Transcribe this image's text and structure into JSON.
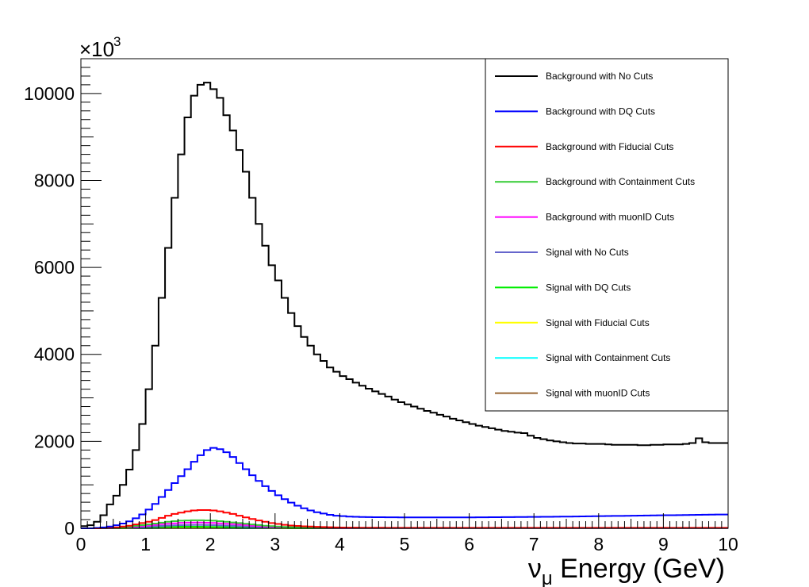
{
  "chart_data": {
    "type": "line",
    "style": "step histogram",
    "xlabel_prefix": "ν",
    "xlabel_sub": "μ",
    "xlabel_suffix": " Energy (GeV)",
    "ylabel": "",
    "y_multiplier_base": "×10",
    "y_multiplier_exp": "3",
    "xlim": [
      0,
      10
    ],
    "ylim": [
      0,
      10800
    ],
    "xticks": [
      "0",
      "1",
      "2",
      "3",
      "4",
      "5",
      "6",
      "7",
      "8",
      "9",
      "10"
    ],
    "yticks": [
      "0",
      "2000",
      "4000",
      "6000",
      "8000",
      "10000"
    ],
    "grid": false,
    "legend_placement": "top-right",
    "bin_width": 0.1,
    "x": [
      0.05,
      0.15,
      0.25,
      0.35,
      0.45,
      0.55,
      0.65,
      0.75,
      0.85,
      0.95,
      1.05,
      1.15,
      1.25,
      1.35,
      1.45,
      1.55,
      1.65,
      1.75,
      1.85,
      1.95,
      2.05,
      2.15,
      2.25,
      2.35,
      2.45,
      2.55,
      2.65,
      2.75,
      2.85,
      2.95,
      3.05,
      3.15,
      3.25,
      3.35,
      3.45,
      3.55,
      3.65,
      3.75,
      3.85,
      3.95,
      4.05,
      4.15,
      4.25,
      4.35,
      4.45,
      4.55,
      4.65,
      4.75,
      4.85,
      4.95,
      5.05,
      5.15,
      5.25,
      5.35,
      5.45,
      5.55,
      5.65,
      5.75,
      5.85,
      5.95,
      6.05,
      6.15,
      6.25,
      6.35,
      6.45,
      6.55,
      6.65,
      6.75,
      6.85,
      6.95,
      7.05,
      7.15,
      7.25,
      7.35,
      7.45,
      7.55,
      7.65,
      7.75,
      7.85,
      7.95,
      8.05,
      8.15,
      8.25,
      8.35,
      8.45,
      8.55,
      8.65,
      8.75,
      8.85,
      8.95,
      9.05,
      9.15,
      9.25,
      9.35,
      9.45,
      9.55,
      9.65,
      9.75,
      9.85,
      9.95
    ],
    "series": [
      {
        "name": "Background with No Cuts",
        "color": "#000000",
        "values": [
          50,
          70,
          150,
          300,
          550,
          750,
          1000,
          1350,
          1800,
          2400,
          3200,
          4200,
          5300,
          6450,
          7600,
          8600,
          9450,
          9950,
          10200,
          10250,
          10100,
          9900,
          9500,
          9150,
          8700,
          8200,
          7600,
          7000,
          6500,
          6050,
          5700,
          5300,
          4950,
          4650,
          4400,
          4200,
          4000,
          3850,
          3700,
          3600,
          3500,
          3430,
          3350,
          3280,
          3210,
          3150,
          3090,
          3030,
          2960,
          2900,
          2850,
          2800,
          2750,
          2700,
          2660,
          2610,
          2570,
          2520,
          2480,
          2440,
          2400,
          2360,
          2330,
          2300,
          2270,
          2240,
          2220,
          2200,
          2190,
          2130,
          2080,
          2050,
          2020,
          2000,
          1980,
          1960,
          1950,
          1950,
          1940,
          1940,
          1940,
          1930,
          1920,
          1920,
          1920,
          1920,
          1910,
          1910,
          1920,
          1920,
          1930,
          1930,
          1930,
          1940,
          1960,
          2070,
          1980,
          1960,
          1960,
          1960
        ]
      },
      {
        "name": "Background with DQ Cuts",
        "color": "#0000ff",
        "values": [
          0,
          0,
          10,
          20,
          40,
          70,
          110,
          160,
          230,
          320,
          430,
          560,
          720,
          880,
          1040,
          1200,
          1360,
          1530,
          1680,
          1800,
          1850,
          1820,
          1750,
          1640,
          1500,
          1360,
          1220,
          1090,
          970,
          860,
          760,
          670,
          590,
          520,
          460,
          410,
          370,
          340,
          310,
          290,
          280,
          270,
          265,
          260,
          258,
          256,
          255,
          254,
          253,
          252,
          252,
          251,
          250,
          250,
          250,
          250,
          250,
          250,
          250,
          250,
          252,
          253,
          254,
          255,
          256,
          257,
          258,
          259,
          260,
          262,
          263,
          264,
          265,
          266,
          268,
          270,
          272,
          274,
          276,
          278,
          280,
          282,
          284,
          286,
          288,
          290,
          292,
          294,
          296,
          298,
          300,
          302,
          304,
          306,
          308,
          310,
          312,
          314,
          316,
          318
        ]
      },
      {
        "name": "Background with Fiducial Cuts",
        "color": "#ff0000",
        "values": [
          0,
          0,
          0,
          5,
          10,
          20,
          40,
          60,
          90,
          120,
          150,
          190,
          240,
          290,
          330,
          360,
          390,
          410,
          420,
          420,
          410,
          390,
          360,
          330,
          290,
          250,
          215,
          180,
          150,
          120,
          100,
          80,
          65,
          55,
          45,
          40,
          35,
          30,
          25,
          20,
          18,
          16,
          15,
          14,
          14,
          13,
          13,
          12,
          12,
          12,
          12,
          12,
          12,
          12,
          12,
          12,
          12,
          12,
          12,
          12,
          12,
          12,
          12,
          12,
          12,
          12,
          12,
          12,
          12,
          12,
          12,
          12,
          12,
          12,
          12,
          12,
          12,
          12,
          12,
          12,
          12,
          12,
          12,
          12,
          12,
          12,
          12,
          12,
          12,
          12,
          12,
          12,
          12,
          12,
          12,
          12,
          12,
          12,
          12,
          12
        ]
      },
      {
        "name": "Background with Containment Cuts",
        "color": "#33cc33",
        "values": [
          0,
          0,
          0,
          3,
          6,
          12,
          24,
          36,
          54,
          72,
          90,
          110,
          130,
          150,
          165,
          175,
          180,
          185,
          185,
          180,
          175,
          165,
          150,
          135,
          120,
          105,
          90,
          75,
          60,
          50,
          40,
          32,
          26,
          22,
          18,
          16,
          14,
          12,
          10,
          9,
          8,
          8,
          7,
          7,
          7,
          6,
          6,
          6,
          6,
          6,
          6,
          6,
          6,
          6,
          6,
          6,
          6,
          6,
          6,
          6,
          6,
          6,
          6,
          6,
          6,
          6,
          6,
          6,
          6,
          6,
          6,
          6,
          6,
          6,
          6,
          6,
          6,
          6,
          6,
          6,
          6,
          6,
          6,
          6,
          6,
          6,
          6,
          6,
          6,
          6,
          6,
          6,
          6,
          6,
          6,
          6,
          6,
          6,
          6,
          6
        ]
      },
      {
        "name": "Background with muonID Cuts",
        "color": "#ff00ff",
        "values": [
          0,
          0,
          0,
          2,
          4,
          8,
          16,
          24,
          36,
          50,
          65,
          80,
          95,
          105,
          115,
          125,
          130,
          132,
          132,
          128,
          122,
          115,
          105,
          95,
          85,
          75,
          62,
          52,
          42,
          35,
          28,
          22,
          18,
          15,
          12,
          10,
          9,
          8,
          7,
          6,
          5,
          5,
          5,
          5,
          5,
          5,
          5,
          5,
          5,
          5,
          5,
          5,
          5,
          5,
          5,
          5,
          5,
          5,
          5,
          5,
          5,
          5,
          5,
          5,
          5,
          5,
          5,
          5,
          5,
          5,
          5,
          5,
          5,
          5,
          5,
          5,
          5,
          5,
          5,
          5,
          5,
          5,
          5,
          5,
          5,
          5,
          5,
          5,
          5,
          5,
          5,
          5,
          5,
          5,
          5,
          5,
          5,
          5,
          5,
          5
        ]
      },
      {
        "name": "Signal with No Cuts",
        "color": "#6666cc",
        "values": [
          0,
          0,
          0,
          1,
          3,
          6,
          10,
          15,
          22,
          30,
          38,
          46,
          54,
          62,
          68,
          72,
          76,
          78,
          78,
          76,
          72,
          68,
          62,
          56,
          48,
          42,
          36,
          30,
          25,
          20,
          16,
          13,
          10,
          8,
          7,
          6,
          5,
          5,
          4,
          4,
          4,
          4,
          4,
          4,
          4,
          4,
          4,
          4,
          4,
          4,
          4,
          4,
          4,
          4,
          4,
          4,
          4,
          4,
          4,
          4,
          4,
          4,
          4,
          4,
          4,
          4,
          4,
          4,
          4,
          4,
          4,
          4,
          4,
          4,
          4,
          4,
          4,
          4,
          4,
          4,
          4,
          4,
          4,
          4,
          4,
          4,
          4,
          4,
          4,
          4,
          4,
          4,
          4,
          4,
          4,
          4,
          4,
          4,
          4,
          4
        ]
      },
      {
        "name": "Signal with DQ Cuts",
        "color": "#00ee00",
        "values": [
          0,
          0,
          0,
          1,
          2,
          4,
          7,
          10,
          14,
          18,
          22,
          26,
          30,
          33,
          35,
          36,
          37,
          37,
          36,
          35,
          33,
          31,
          28,
          25,
          22,
          19,
          16,
          13,
          11,
          9,
          7,
          6,
          5,
          4,
          3,
          3,
          2,
          2,
          2,
          2,
          2,
          2,
          2,
          2,
          2,
          2,
          2,
          2,
          2,
          2,
          2,
          2,
          2,
          2,
          2,
          2,
          2,
          2,
          2,
          2,
          2,
          2,
          2,
          2,
          2,
          2,
          2,
          2,
          2,
          2,
          2,
          2,
          2,
          2,
          2,
          2,
          2,
          2,
          2,
          2,
          2,
          2,
          2,
          2,
          2,
          2,
          2,
          2,
          2,
          2,
          2,
          2,
          2,
          2,
          2,
          2,
          2,
          2,
          2,
          2
        ]
      },
      {
        "name": "Signal with Fiducial Cuts",
        "color": "#ffff00",
        "values": [
          0,
          0,
          0,
          0,
          1,
          2,
          3,
          4,
          6,
          8,
          10,
          12,
          13,
          14,
          15,
          16,
          16,
          16,
          15,
          15,
          14,
          13,
          12,
          11,
          10,
          9,
          8,
          7,
          6,
          5,
          4,
          3,
          3,
          2,
          2,
          2,
          1,
          1,
          1,
          1,
          1,
          1,
          1,
          1,
          1,
          1,
          1,
          1,
          1,
          1,
          1,
          1,
          1,
          1,
          1,
          1,
          1,
          1,
          1,
          1,
          1,
          1,
          1,
          1,
          1,
          1,
          1,
          1,
          1,
          1,
          1,
          1,
          1,
          1,
          1,
          1,
          1,
          1,
          1,
          1,
          1,
          1,
          1,
          1,
          1,
          1,
          1,
          1,
          1,
          1,
          1,
          1,
          1,
          1,
          1,
          1,
          1,
          1,
          1,
          1
        ]
      },
      {
        "name": "Signal with Containment Cuts",
        "color": "#00ffff",
        "values": [
          0,
          0,
          0,
          0,
          1,
          1,
          2,
          3,
          4,
          5,
          6,
          7,
          8,
          9,
          9,
          10,
          10,
          10,
          10,
          9,
          9,
          8,
          8,
          7,
          6,
          5,
          5,
          4,
          4,
          3,
          3,
          2,
          2,
          2,
          1,
          1,
          1,
          1,
          1,
          1,
          1,
          1,
          1,
          1,
          1,
          1,
          1,
          1,
          1,
          1,
          1,
          1,
          1,
          1,
          1,
          1,
          1,
          1,
          1,
          1,
          1,
          1,
          1,
          1,
          1,
          1,
          1,
          1,
          1,
          1,
          1,
          1,
          1,
          1,
          1,
          1,
          1,
          1,
          1,
          1,
          1,
          1,
          1,
          1,
          1,
          1,
          1,
          1,
          1,
          1,
          1,
          1,
          1,
          1,
          1,
          1,
          1,
          1,
          1,
          1
        ]
      },
      {
        "name": "Signal with muonID Cuts",
        "color": "#996633",
        "values": [
          0,
          0,
          0,
          0,
          0,
          1,
          1,
          2,
          2,
          3,
          3,
          4,
          4,
          5,
          5,
          5,
          5,
          5,
          5,
          5,
          5,
          4,
          4,
          4,
          3,
          3,
          3,
          2,
          2,
          2,
          2,
          1,
          1,
          1,
          1,
          1,
          1,
          1,
          1,
          1,
          1,
          1,
          1,
          1,
          1,
          1,
          1,
          1,
          1,
          1,
          1,
          1,
          1,
          1,
          1,
          1,
          1,
          1,
          1,
          1,
          1,
          1,
          1,
          1,
          1,
          1,
          1,
          1,
          1,
          1,
          1,
          1,
          1,
          1,
          1,
          1,
          1,
          1,
          1,
          1,
          1,
          1,
          1,
          1,
          1,
          1,
          1,
          1,
          1,
          1,
          1,
          1,
          1,
          1,
          1,
          1,
          1,
          1,
          1,
          1
        ]
      }
    ]
  }
}
